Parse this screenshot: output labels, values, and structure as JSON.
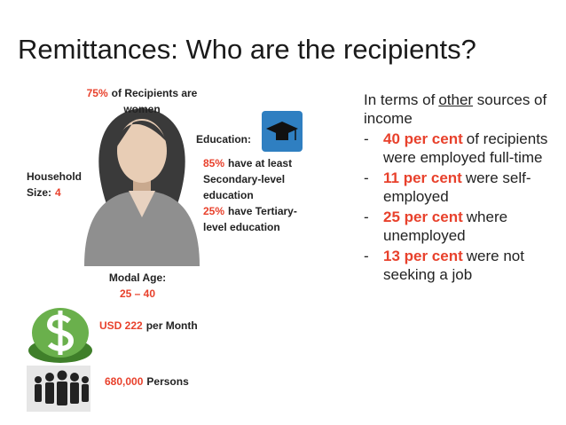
{
  "title": "Remittances: Who are the recipients?",
  "left": {
    "women": {
      "pct": "75%",
      "text": "of Recipients are women"
    },
    "education": {
      "label": "Education:",
      "items": [
        {
          "pct": "85%",
          "text": "have at least Secondary-level education"
        },
        {
          "pct": "25%",
          "text": "have Tertiary-level education"
        }
      ]
    },
    "household": {
      "label": "Household Size:",
      "value": "4"
    },
    "age": {
      "label": "Modal Age:",
      "value": "25 – 40"
    },
    "income": {
      "value": "USD 222",
      "text": "per Month"
    },
    "persons": {
      "value": "680,000",
      "text": "Persons"
    }
  },
  "right": {
    "intro": {
      "before": "In terms of",
      "link": "other",
      "after": "sources of income"
    },
    "bullet": "-",
    "bullets": [
      {
        "highlight": "40 per cent",
        "text": "of recipients were employed full-time"
      },
      {
        "highlight": "11 per cent",
        "text": "were self-employed"
      },
      {
        "highlight": "25 per cent",
        "text": "where unemployed"
      },
      {
        "highlight": "13 per cent",
        "text": "were not seeking a job"
      }
    ]
  }
}
